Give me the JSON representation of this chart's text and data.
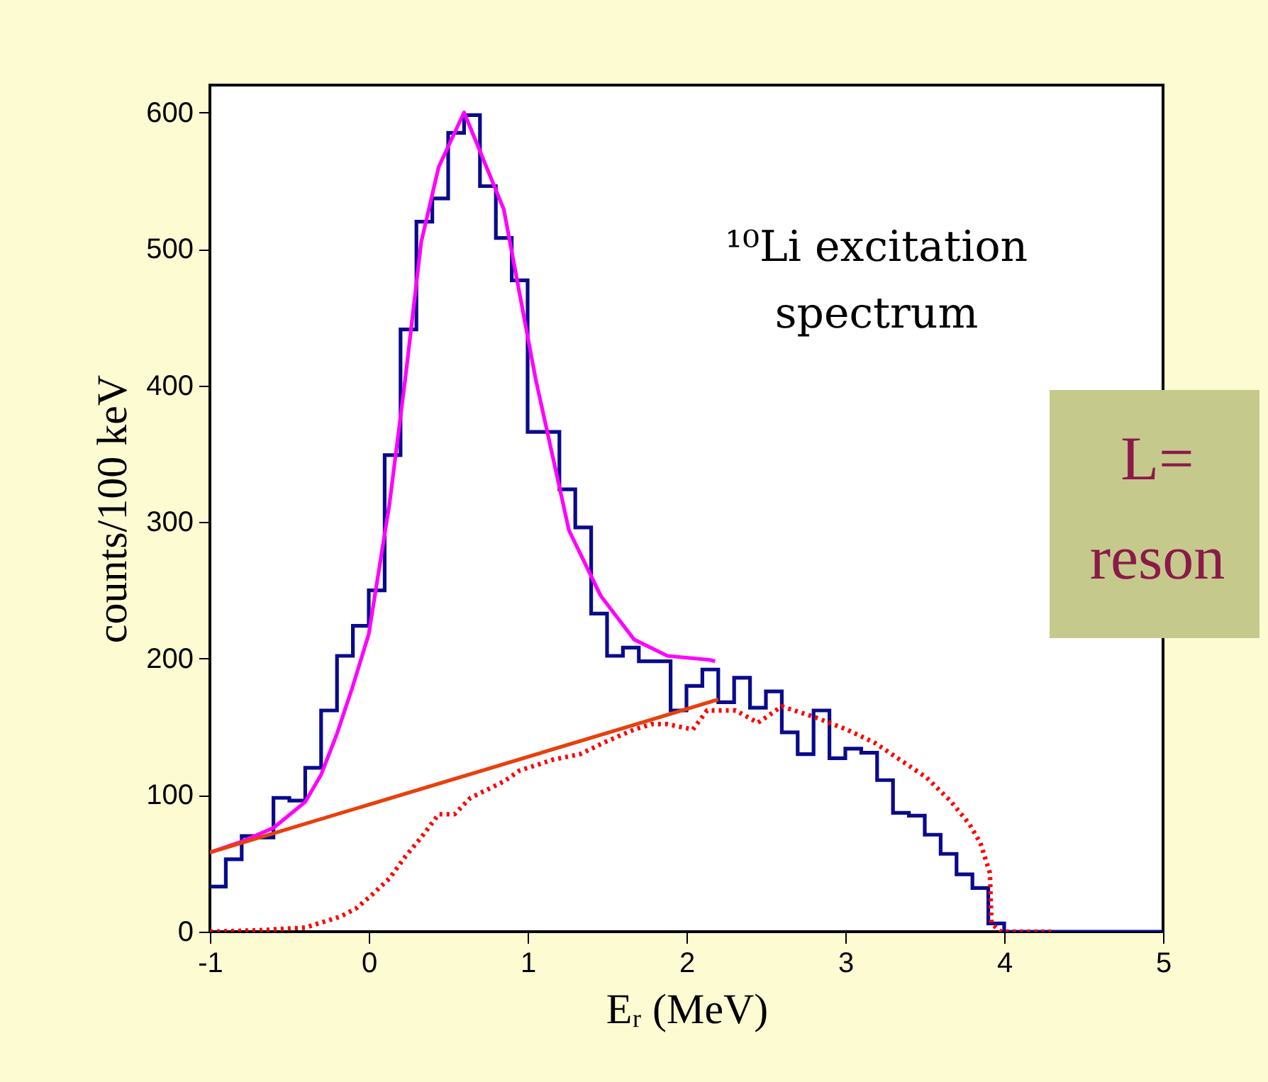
{
  "chart_data": {
    "type": "line",
    "xlabel": "Eᵣ (MeV)",
    "ylabel": "counts/100 keV",
    "xlim": [
      -1,
      5
    ],
    "ylim": [
      0,
      620
    ],
    "xticks": [
      -1,
      0,
      1,
      2,
      3,
      4,
      5
    ],
    "yticks": [
      0,
      100,
      200,
      300,
      400,
      500,
      600
    ],
    "grid": false,
    "annotations": [
      "¹⁰Li excitation\nspectrum",
      "L=",
      "reson"
    ],
    "series": [
      {
        "type": "step",
        "color": "#0a0a8c",
        "x": [
          -1.0,
          -0.9,
          -0.8,
          -0.7,
          -0.6,
          -0.5,
          -0.4,
          -0.3,
          -0.2,
          -0.1,
          0.0,
          0.1,
          0.2,
          0.3,
          0.4,
          0.5,
          0.6,
          0.7,
          0.8,
          0.9,
          1.0,
          1.1,
          1.2,
          1.3,
          1.4,
          1.5,
          1.6,
          1.7,
          1.8,
          1.9,
          2.0,
          2.1,
          2.2,
          2.3,
          2.4,
          2.5,
          2.6,
          2.7,
          2.8,
          2.9,
          3.0,
          3.1,
          3.2,
          3.3,
          3.4,
          3.5,
          3.6,
          3.7,
          3.8,
          3.9,
          4.0,
          5.0
        ],
        "values": [
          33,
          53,
          70,
          69,
          98,
          96,
          120,
          162,
          202,
          224,
          250,
          349,
          441,
          520,
          537,
          585,
          598,
          546,
          508,
          477,
          366,
          366,
          324,
          296,
          233,
          202,
          208,
          198,
          198,
          162,
          180,
          192,
          168,
          186,
          164,
          176,
          146,
          130,
          162,
          127,
          134,
          131,
          111,
          87,
          85,
          71,
          57,
          42,
          32,
          6,
          0,
          0
        ]
      },
      {
        "color": "#ff00ff",
        "x": [
          -1.0,
          -0.8,
          -0.6,
          -0.4,
          -0.3,
          -0.2,
          -0.1,
          0.0,
          0.13,
          0.23,
          0.33,
          0.44,
          0.6,
          0.85,
          1.05,
          1.26,
          1.46,
          1.67,
          1.88,
          2.15,
          2.18
        ],
        "values": [
          58,
          66,
          76,
          95,
          115,
          145,
          180,
          218,
          313,
          405,
          505,
          560,
          600,
          529,
          405,
          294,
          246,
          214,
          202,
          199,
          198
        ]
      },
      {
        "color": "#e8400c",
        "x": [
          -1.0,
          2.2
        ],
        "values": [
          58,
          170
        ]
      },
      {
        "color": "#ff0000",
        "line_style": "dotted",
        "x": [
          -1.0,
          -0.7,
          -0.4,
          -0.18,
          -0.08,
          0.02,
          0.13,
          0.23,
          0.33,
          0.44,
          0.54,
          0.64,
          0.85,
          0.95,
          1.16,
          1.33,
          1.49,
          1.67,
          1.78,
          1.88,
          2.04,
          2.13,
          2.31,
          2.45,
          2.6,
          2.81,
          3.01,
          3.19,
          3.33,
          3.51,
          3.66,
          3.78,
          3.85,
          3.91,
          3.92,
          3.98,
          4.3
        ],
        "values": [
          0,
          1,
          3,
          11,
          17,
          27,
          39,
          55,
          69,
          86,
          86,
          98,
          110,
          118,
          126,
          130,
          139,
          148,
          152,
          152,
          148,
          162,
          162,
          153,
          165,
          157,
          148,
          138,
          127,
          113,
          96,
          79,
          65,
          43,
          6,
          0,
          0
        ]
      }
    ]
  }
}
